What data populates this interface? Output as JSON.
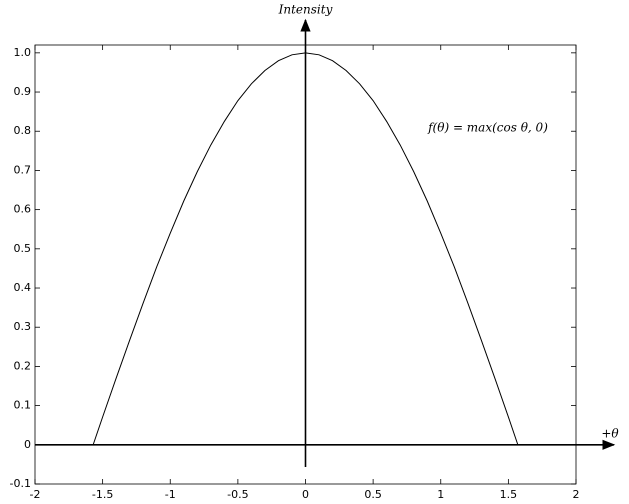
{
  "chart_data": {
    "type": "line",
    "y_label": "Intensity",
    "x_label": "+θ",
    "annotation": "f(θ) = max(cos θ, 0)",
    "x": [
      -2,
      -1.9,
      -1.8,
      -1.7,
      -1.6,
      -1.57,
      -1.5,
      -1.4,
      -1.3,
      -1.2,
      -1.1,
      -1.0,
      -0.9,
      -0.8,
      -0.7,
      -0.6,
      -0.5,
      -0.4,
      -0.3,
      -0.2,
      -0.1,
      0,
      0.1,
      0.2,
      0.3,
      0.4,
      0.5,
      0.6,
      0.7,
      0.8,
      0.9,
      1.0,
      1.1,
      1.2,
      1.3,
      1.4,
      1.5,
      1.57,
      1.6,
      1.7,
      1.8,
      1.9,
      2
    ],
    "series": [
      {
        "color": "#000000",
        "values": [
          0,
          0,
          0,
          0,
          0,
          0,
          0.071,
          0.17,
          0.267,
          0.362,
          0.454,
          0.54,
          0.622,
          0.697,
          0.765,
          0.825,
          0.878,
          0.921,
          0.955,
          0.98,
          0.995,
          1,
          0.995,
          0.98,
          0.955,
          0.921,
          0.878,
          0.825,
          0.765,
          0.697,
          0.622,
          0.54,
          0.454,
          0.362,
          0.267,
          0.17,
          0.071,
          0,
          0,
          0,
          0,
          0,
          0
        ]
      }
    ],
    "xlim": [
      -2,
      2
    ],
    "xticks": [
      -2,
      -1.5,
      -1,
      -0.5,
      0,
      0.5,
      1,
      1.5,
      2
    ],
    "ylim": [
      -0.1,
      1.02
    ],
    "yticks": [
      -0.1,
      0,
      0.1,
      0.2,
      0.3,
      0.4,
      0.5,
      0.6,
      0.7,
      0.8,
      0.9,
      {
        "value": 1,
        "label": "1.0"
      }
    ]
  }
}
